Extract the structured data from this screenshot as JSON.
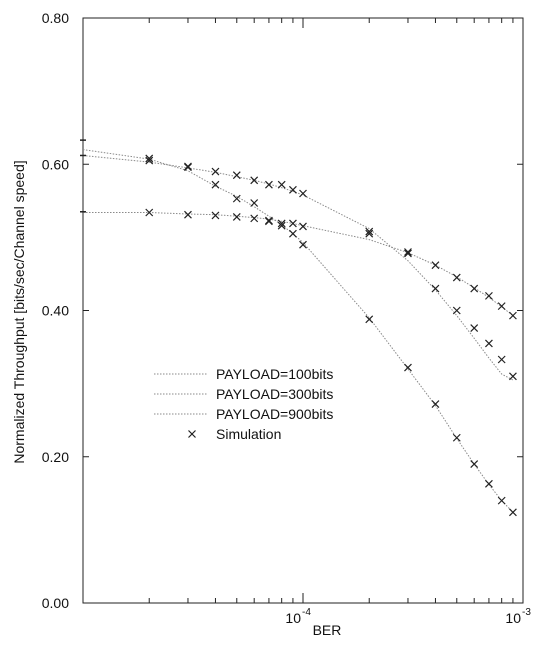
{
  "chart_data": {
    "type": "line",
    "xscale": "log",
    "xlabel": "BER",
    "ylabel": "Normalized Throughput [bits/sec/Channel speed]",
    "xlim": [
      1e-05,
      0.001
    ],
    "ylim": [
      0.0,
      0.8
    ],
    "x_ticks": [
      {
        "value": 0.0001,
        "base": "10",
        "exp": "-4"
      },
      {
        "value": 0.001,
        "base": "10",
        "exp": "-3"
      }
    ],
    "y_ticks": [
      {
        "value": 0.0,
        "label": "0.00"
      },
      {
        "value": 0.2,
        "label": "0.20"
      },
      {
        "value": 0.4,
        "label": "0.40"
      },
      {
        "value": 0.6,
        "label": "0.60"
      },
      {
        "value": 0.8,
        "label": "0.80"
      }
    ],
    "grid": false,
    "legend_position": "center-left",
    "series": [
      {
        "name": "PAYLOAD=100bits",
        "color": "#8a8a8a",
        "x": [
          1e-05,
          2e-05,
          3e-05,
          4e-05,
          5e-05,
          6e-05,
          7e-05,
          8e-05,
          9e-05,
          0.0001,
          0.0002,
          0.0003,
          0.0004,
          0.0005,
          0.0006,
          0.0007,
          0.0008,
          0.0009
        ],
        "y": [
          0.534,
          0.534,
          0.532,
          0.531,
          0.529,
          0.527,
          0.525,
          0.522,
          0.519,
          0.516,
          0.497,
          0.479,
          0.462,
          0.446,
          0.431,
          0.418,
          0.405,
          0.393
        ]
      },
      {
        "name": "PAYLOAD=300bits",
        "color": "#8a8a8a",
        "x": [
          1e-05,
          2e-05,
          3e-05,
          4e-05,
          5e-05,
          6e-05,
          7e-05,
          8e-05,
          9e-05,
          0.0001,
          0.0002,
          0.0003,
          0.0004,
          0.0005,
          0.0006,
          0.0007,
          0.0008,
          0.0009
        ],
        "y": [
          0.612,
          0.603,
          0.595,
          0.589,
          0.583,
          0.578,
          0.573,
          0.568,
          0.563,
          0.558,
          0.512,
          0.468,
          0.428,
          0.393,
          0.362,
          0.335,
          0.313,
          0.305
        ]
      },
      {
        "name": "PAYLOAD=900bits",
        "color": "#8a8a8a",
        "x": [
          1e-05,
          2e-05,
          3e-05,
          4e-05,
          5e-05,
          6e-05,
          7e-05,
          8e-05,
          9e-05,
          0.0001,
          0.0002,
          0.0003,
          0.0004,
          0.0005,
          0.0006,
          0.0007,
          0.0008,
          0.0009
        ],
        "y": [
          0.62,
          0.607,
          0.591,
          0.57,
          0.556,
          0.542,
          0.529,
          0.517,
          0.505,
          0.493,
          0.39,
          0.32,
          0.27,
          0.225,
          0.19,
          0.162,
          0.14,
          0.124
        ]
      },
      {
        "name": "Simulation",
        "color": "#222222",
        "marker": "x",
        "x": [
          2e-05,
          3e-05,
          4e-05,
          5e-05,
          6e-05,
          7e-05,
          8e-05,
          9e-05,
          0.0001,
          0.0002,
          0.0003,
          0.0004,
          0.0005,
          0.0006,
          0.0007,
          0.0008,
          0.0009,
          2e-05,
          3e-05,
          4e-05,
          5e-05,
          6e-05,
          7e-05,
          8e-05,
          9e-05,
          0.0001,
          0.0002,
          0.0003,
          0.0004,
          0.0005,
          0.0006,
          0.0007,
          0.0008,
          0.0009,
          2e-05,
          3e-05,
          4e-05,
          5e-05,
          6e-05,
          7e-05,
          8e-05,
          9e-05,
          0.0001,
          0.0002,
          0.0003,
          0.0004,
          0.0005,
          0.0006,
          0.0007,
          0.0008,
          0.0009
        ],
        "y": [
          0.534,
          0.531,
          0.53,
          0.528,
          0.526,
          0.523,
          0.519,
          0.519,
          0.515,
          0.505,
          0.48,
          0.462,
          0.445,
          0.43,
          0.42,
          0.406,
          0.393,
          0.608,
          0.596,
          0.59,
          0.585,
          0.578,
          0.572,
          0.572,
          0.565,
          0.56,
          0.508,
          0.478,
          0.43,
          0.4,
          0.376,
          0.355,
          0.333,
          0.31,
          0.605,
          0.597,
          0.572,
          0.553,
          0.547,
          0.522,
          0.516,
          0.505,
          0.49,
          0.388,
          0.322,
          0.272,
          0.226,
          0.19,
          0.163,
          0.14,
          0.124
        ]
      }
    ],
    "legend_entries": [
      "PAYLOAD=100bits",
      "PAYLOAD=300bits",
      "PAYLOAD=900bits",
      "Simulation"
    ],
    "edge_markers": [
      {
        "x": 1e-05,
        "y": 0.633
      },
      {
        "x": 1e-05,
        "y": 0.612
      },
      {
        "x": 1e-05,
        "y": 0.535
      }
    ]
  }
}
